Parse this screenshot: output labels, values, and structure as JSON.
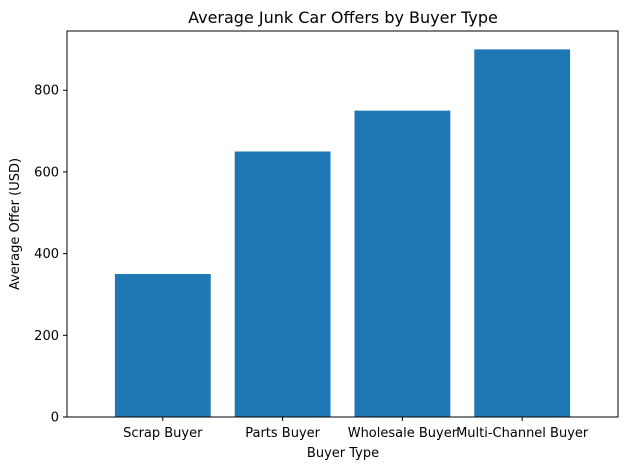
{
  "chart_data": {
    "type": "bar",
    "title": "Average Junk Car Offers by Buyer Type",
    "xlabel": "Buyer Type",
    "ylabel": "Average Offer (USD)",
    "categories": [
      "Scrap Buyer",
      "Parts Buyer",
      "Wholesale Buyer",
      "Multi-Channel Buyer"
    ],
    "values": [
      350,
      650,
      750,
      900
    ],
    "ylim": [
      0,
      945
    ],
    "yticks": [
      0,
      200,
      400,
      600,
      800
    ],
    "grid": false,
    "legend": "none",
    "bar_color": "#1f77b4"
  }
}
